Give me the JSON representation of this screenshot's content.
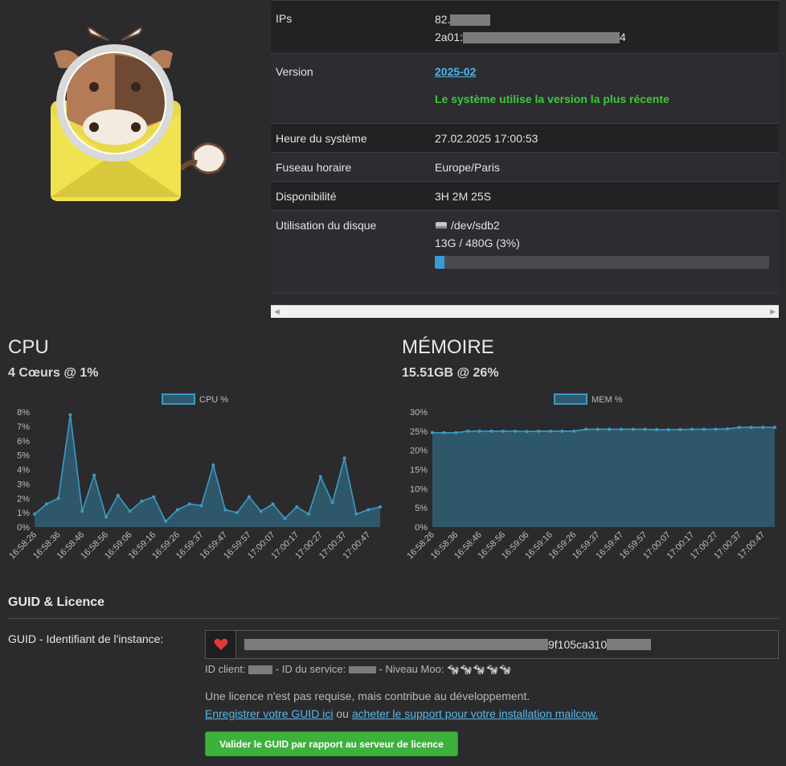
{
  "info": {
    "ips_label": "IPs",
    "ip4_prefix": "82.",
    "ip6_prefix": "2a01:",
    "ip6_suffix": "4",
    "version_label": "Version",
    "version_value": "2025-02",
    "version_status": "Le système utilise la version la plus récente",
    "time_label": "Heure du système",
    "time_value": "27.02.2025 17:00:53",
    "tz_label": "Fuseau horaire",
    "tz_value": "Europe/Paris",
    "uptime_label": "Disponibilité",
    "uptime_value": "3H 2M 25S",
    "disk_label": "Utilisation du disque",
    "disk_device": "/dev/sdb2",
    "disk_usage": "13G / 480G (3%)",
    "disk_percent": 3
  },
  "cpu": {
    "title": "CPU",
    "summary": "4 Cœurs @ 1%"
  },
  "memory": {
    "title": "MÉMOIRE",
    "summary": "15.51GB @ 26%"
  },
  "chart_data": [
    {
      "type": "area",
      "legend": "CPU %",
      "x": [
        "16:58:26",
        "16:58:31",
        "16:58:36",
        "16:58:41",
        "16:58:46",
        "16:58:51",
        "16:58:56",
        "16:59:01",
        "16:59:06",
        "16:59:11",
        "16:59:16",
        "16:59:21",
        "16:59:26",
        "16:59:31",
        "16:59:37",
        "16:59:42",
        "16:59:47",
        "16:59:52",
        "16:59:57",
        "17:00:02",
        "17:00:07",
        "17:00:12",
        "17:00:17",
        "17:00:22",
        "17:00:27",
        "17:00:32",
        "17:00:37",
        "17:00:42",
        "17:00:47",
        "17:00:52"
      ],
      "xticks": [
        "16:58:26",
        "16:58:36",
        "16:58:46",
        "16:58:56",
        "16:59:06",
        "16:59:16",
        "16:59:26",
        "16:59:37",
        "16:59:47",
        "16:59:57",
        "17:00:07",
        "17:00:17",
        "17:00:27",
        "17:00:37",
        "17:00:47"
      ],
      "values": [
        0.9,
        1.6,
        2.0,
        7.8,
        1.1,
        3.6,
        0.7,
        2.2,
        1.1,
        1.8,
        2.1,
        0.4,
        1.2,
        1.6,
        1.5,
        4.3,
        1.2,
        1.0,
        2.1,
        1.1,
        1.6,
        0.6,
        1.4,
        0.9,
        3.5,
        1.7,
        4.8,
        0.9,
        1.2,
        1.4
      ],
      "ylim": [
        0,
        8
      ],
      "yticks": [
        "0%",
        "1%",
        "2%",
        "3%",
        "4%",
        "5%",
        "6%",
        "7%",
        "8%"
      ],
      "grid": false,
      "legend_position": "top"
    },
    {
      "type": "area",
      "legend": "MEM %",
      "x": [
        "16:58:26",
        "16:58:31",
        "16:58:36",
        "16:58:41",
        "16:58:46",
        "16:58:51",
        "16:58:56",
        "16:59:01",
        "16:59:06",
        "16:59:11",
        "16:59:16",
        "16:59:21",
        "16:59:26",
        "16:59:31",
        "16:59:37",
        "16:59:42",
        "16:59:47",
        "16:59:52",
        "16:59:57",
        "17:00:02",
        "17:00:07",
        "17:00:12",
        "17:00:17",
        "17:00:22",
        "17:00:27",
        "17:00:32",
        "17:00:37",
        "17:00:42",
        "17:00:47",
        "17:00:52"
      ],
      "xticks": [
        "16:58:26",
        "16:58:36",
        "16:58:46",
        "16:58:56",
        "16:59:06",
        "16:59:16",
        "16:59:26",
        "16:59:37",
        "16:59:47",
        "16:59:57",
        "17:00:07",
        "17:00:17",
        "17:00:27",
        "17:00:37",
        "17:00:47"
      ],
      "values": [
        24.6,
        24.6,
        24.6,
        25.0,
        25.0,
        25.0,
        25.0,
        25.0,
        24.9,
        25.0,
        25.0,
        25.0,
        25.0,
        25.5,
        25.5,
        25.5,
        25.5,
        25.5,
        25.5,
        25.4,
        25.4,
        25.4,
        25.5,
        25.5,
        25.5,
        25.6,
        26.0,
        26.0,
        26.0,
        26.0
      ],
      "ylim": [
        0,
        30
      ],
      "yticks": [
        "0%",
        "5%",
        "10%",
        "15%",
        "20%",
        "25%",
        "30%"
      ],
      "grid": false,
      "legend_position": "top"
    }
  ],
  "guid": {
    "section_title": "GUID & Licence",
    "label": "GUID - Identifiant de l'instance:",
    "value_visible": "9f105ca310",
    "meta_client": "ID client:",
    "meta_service": "- ID du service:",
    "meta_level": "- Niveau Moo:",
    "moo_level": "🐄🐄🐄🐄🐄",
    "note": "Une licence n'est pas requise, mais contribue au développement.",
    "register_link": "Enregistrer votre GUID ici",
    "or_text": "ou",
    "support_link": "acheter le support pour votre installation mailcow.",
    "validate_button": "Valider le GUID par rapport au serveur de licence"
  },
  "colors": {
    "accent_blue": "#4fb3e8",
    "status_green": "#3cc93c",
    "chart_line": "#3d9ac4",
    "chart_fill": "#2f5a6e"
  }
}
